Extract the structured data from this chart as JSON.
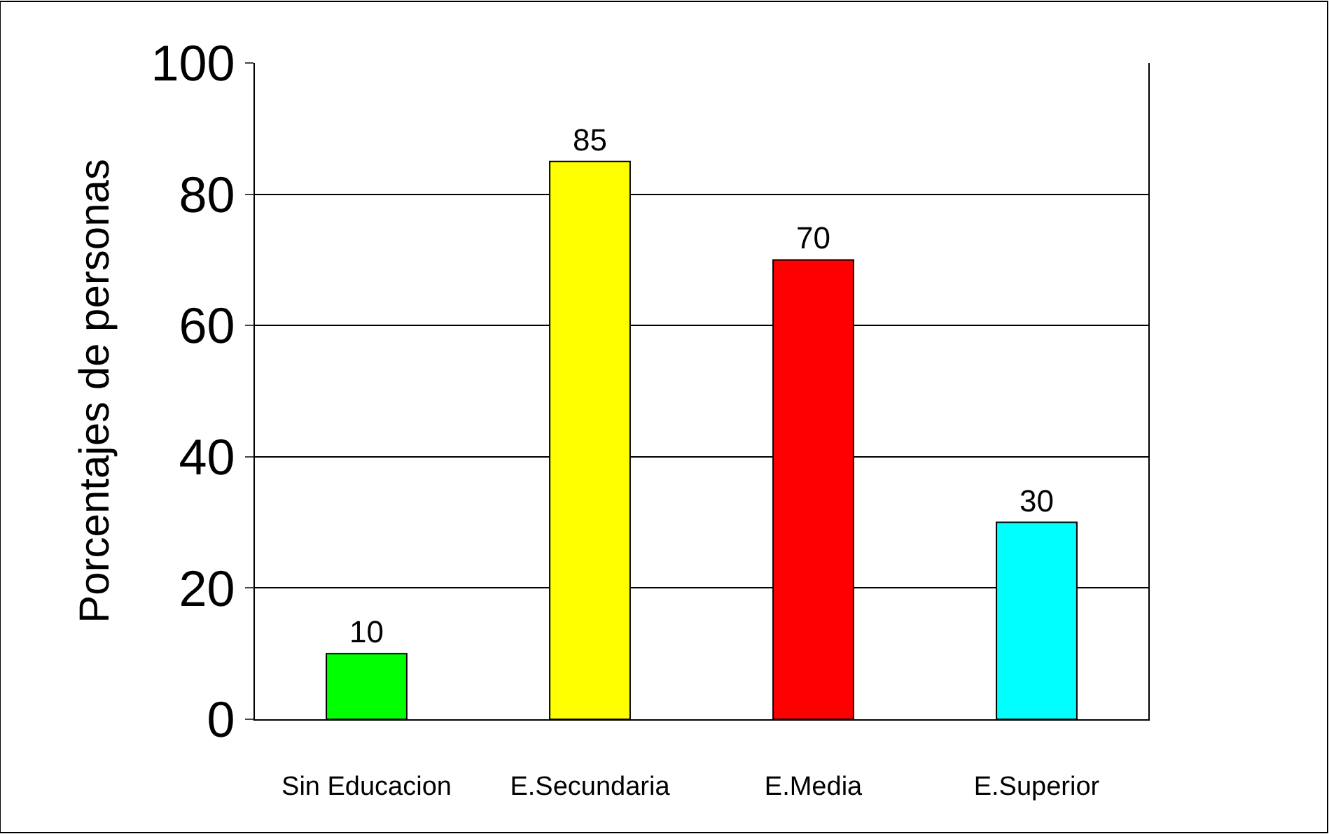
{
  "chart_data": {
    "type": "bar",
    "ylabel": "Porcentajes de personas",
    "categories": [
      "Sin Educacion",
      "E.Secundaria",
      "E.Media",
      "E.Superior"
    ],
    "values": [
      10,
      85,
      70,
      30
    ],
    "colors": [
      "#00ff00",
      "#ffff00",
      "#ff0000",
      "#00ffff"
    ],
    "ylim": [
      0,
      100
    ],
    "yticks": [
      0,
      20,
      40,
      60,
      80,
      100
    ],
    "grid": "y",
    "data_labels": true
  }
}
